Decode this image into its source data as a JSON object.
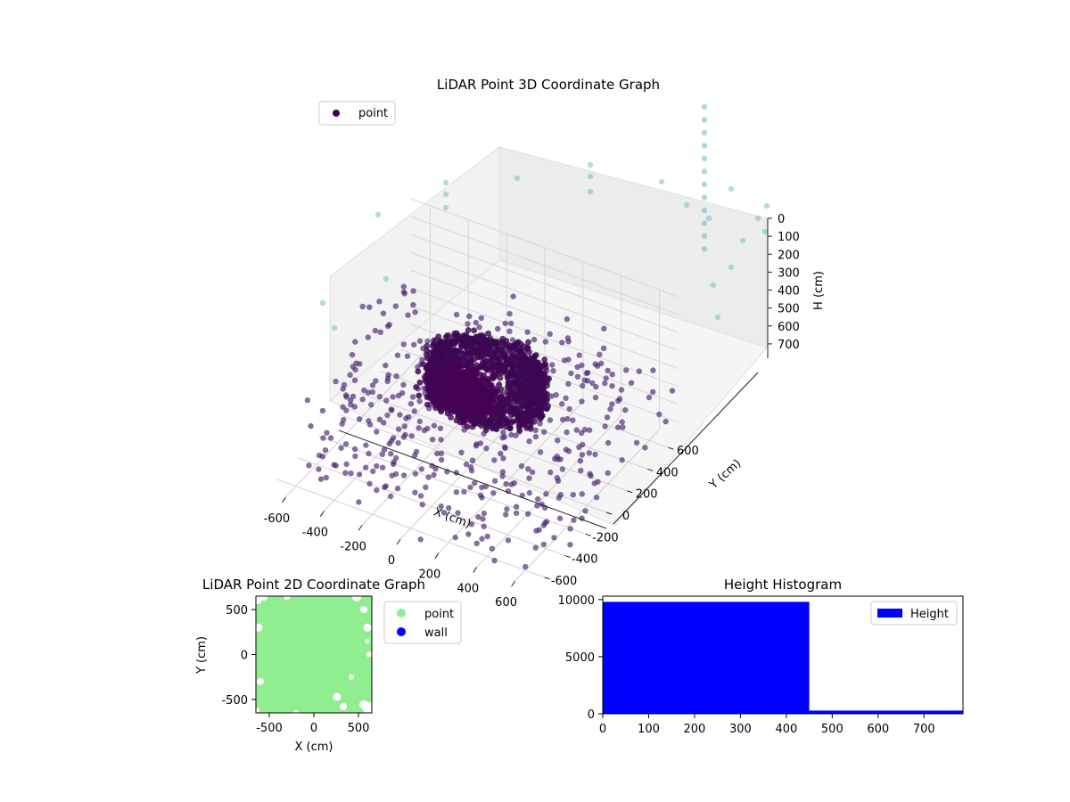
{
  "chart_data": [
    {
      "type": "scatter",
      "projection": "3d",
      "title": "LiDAR Point 3D Coordinate Graph",
      "xlabel": "X (cm)",
      "ylabel": "Y (cm)",
      "zlabel": "H (cm)",
      "xlim": [
        -700,
        700
      ],
      "ylim": [
        -700,
        700
      ],
      "zlim": [
        0,
        780
      ],
      "z_inverted": true,
      "xticks": [
        -600,
        -400,
        -200,
        0,
        200,
        400,
        600
      ],
      "yticks": [
        -600,
        -400,
        -200,
        0,
        200,
        400,
        600
      ],
      "zticks": [
        0,
        100,
        200,
        300,
        400,
        500,
        600,
        700
      ],
      "grid": true,
      "legend_position": "upper-left",
      "colormap": [
        "#440154",
        "#3b528b",
        "#21918c",
        "#5ec962"
      ],
      "series": [
        {
          "name": "point",
          "color": "#440154",
          "points_summary": "approx. 10,000 points, dense ring-shaped cluster near center at heights 200–450 cm; sparse outliers up to ±700 cm; a few high (H≈700+) light-teal points",
          "sample_points": [
            [
              -620,
              580,
              710
            ],
            [
              -330,
              600,
              720
            ],
            [
              0,
              600,
              700
            ],
            [
              180,
              570,
              690
            ],
            [
              320,
              600,
              650
            ],
            [
              480,
              560,
              700
            ],
            [
              600,
              480,
              720
            ],
            [
              620,
              300,
              700
            ],
            [
              600,
              200,
              720
            ],
            [
              560,
              100,
              680
            ],
            [
              -600,
              100,
              680
            ],
            [
              -620,
              -300,
              700
            ],
            [
              660,
              -20,
              700
            ],
            [
              680,
              -200,
              700
            ],
            [
              600,
              600,
              540
            ],
            [
              -500,
              -500,
              600
            ],
            [
              -300,
              -300,
              640
            ],
            [
              0,
              -500,
              660
            ],
            [
              300,
              -500,
              660
            ],
            [
              500,
              -300,
              640
            ],
            [
              -450,
              300,
              600
            ],
            [
              450,
              300,
              600
            ],
            [
              -600,
              -600,
              750
            ],
            [
              600,
              -600,
              760
            ],
            [
              0,
              0,
              300
            ],
            [
              -120,
              80,
              320
            ],
            [
              120,
              -80,
              340
            ],
            [
              60,
              200,
              300
            ],
            [
              -200,
              -100,
              380
            ],
            [
              240,
              120,
              360
            ]
          ]
        }
      ]
    },
    {
      "type": "scatter",
      "title": "LiDAR Point 2D Coordinate Graph",
      "xlabel": "X (cm)",
      "ylabel": "Y (cm)",
      "xlim": [
        -650,
        650
      ],
      "ylim": [
        -650,
        650
      ],
      "xticks": [
        -500,
        0,
        500
      ],
      "yticks": [
        -500,
        0,
        500
      ],
      "legend_position": "outside-right",
      "series": [
        {
          "name": "point",
          "color": "#90ee90",
          "fill_summary": "dense green coverage of nearly the whole area with white gaps near the edges"
        },
        {
          "name": "wall",
          "color": "#0000ff",
          "count": 0
        }
      ]
    },
    {
      "type": "bar",
      "subtype": "histogram",
      "title": "Height Histogram",
      "xlim": [
        0,
        785
      ],
      "ylim": [
        0,
        10300
      ],
      "xticks": [
        0,
        100,
        200,
        300,
        400,
        500,
        600,
        700
      ],
      "yticks": [
        0,
        5000,
        10000
      ],
      "legend_position": "upper-right",
      "series": [
        {
          "name": "Height",
          "color": "#0000ff",
          "bins": [
            {
              "x0": 0,
              "x1": 450,
              "count": 9800
            },
            {
              "x0": 450,
              "x1": 785,
              "count": 280
            }
          ]
        }
      ]
    }
  ]
}
